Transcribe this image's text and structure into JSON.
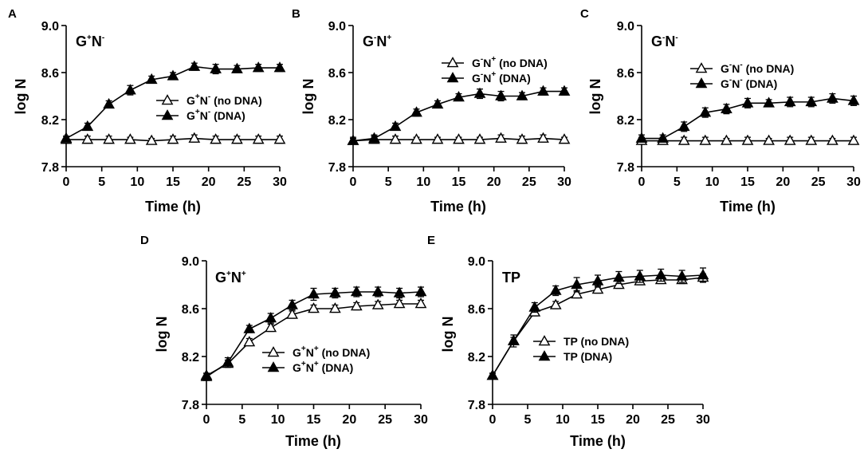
{
  "chart_data": [
    {
      "id": "A",
      "type": "line",
      "panel_letter": "A",
      "title": "G⁺N⁻",
      "title_main": "G",
      "title_sups": [
        "+",
        "N",
        "-"
      ],
      "xlabel": "Time (h)",
      "ylabel": "log N",
      "xlim": [
        0,
        30
      ],
      "ylim": [
        7.8,
        9.0
      ],
      "xticks": [
        0,
        5,
        10,
        15,
        20,
        25,
        30
      ],
      "yticks": [
        7.8,
        8.2,
        8.6,
        9.0
      ],
      "ytick_labels": [
        "7.8",
        "8.2",
        "8.6",
        "9.0"
      ],
      "legend_position": "center-right",
      "series": [
        {
          "name": "G⁺N⁻ (no DNA)",
          "label_base": "G",
          "label_sup1": "+",
          "label_mid": "N",
          "label_sup2": "-",
          "label_tail": " (no DNA)",
          "marker": "open-triangle",
          "x": [
            0,
            3,
            6,
            9,
            12,
            15,
            18,
            21,
            24,
            27,
            30
          ],
          "y": [
            8.03,
            8.03,
            8.03,
            8.03,
            8.02,
            8.03,
            8.04,
            8.03,
            8.03,
            8.03,
            8.03
          ],
          "err": [
            0.03,
            0.03,
            0.03,
            0.02,
            0.02,
            0.03,
            0.03,
            0.03,
            0.03,
            0.03,
            0.03
          ]
        },
        {
          "name": "G⁺N⁻ (DNA)",
          "label_base": "G",
          "label_sup1": "+",
          "label_mid": "N",
          "label_sup2": "-",
          "label_tail": " (DNA)",
          "marker": "filled-triangle",
          "x": [
            0,
            3,
            6,
            9,
            12,
            15,
            18,
            21,
            24,
            27,
            30
          ],
          "y": [
            8.04,
            8.14,
            8.33,
            8.45,
            8.54,
            8.57,
            8.65,
            8.63,
            8.63,
            8.64,
            8.64
          ],
          "err": [
            0.02,
            0.03,
            0.03,
            0.04,
            0.03,
            0.03,
            0.03,
            0.04,
            0.03,
            0.03,
            0.03
          ]
        }
      ]
    },
    {
      "id": "B",
      "type": "line",
      "panel_letter": "B",
      "title": "G⁻N⁺",
      "title_main": "G",
      "title_sups": [
        "-",
        "N",
        "+"
      ],
      "xlabel": "Time (h)",
      "ylabel": "log N",
      "xlim": [
        0,
        30
      ],
      "ylim": [
        7.8,
        9.0
      ],
      "xticks": [
        0,
        5,
        10,
        15,
        20,
        25,
        30
      ],
      "yticks": [
        7.8,
        8.2,
        8.6,
        9.0
      ],
      "ytick_labels": [
        "7.8",
        "8.2",
        "8.6",
        "9.0"
      ],
      "legend_position": "upper-right",
      "series": [
        {
          "name": "G⁻N⁺ (no DNA)",
          "label_base": "G",
          "label_sup1": "-",
          "label_mid": "N",
          "label_sup2": "+",
          "label_tail": " (no DNA)",
          "marker": "open-triangle",
          "x": [
            0,
            3,
            6,
            9,
            12,
            15,
            18,
            21,
            24,
            27,
            30
          ],
          "y": [
            8.02,
            8.03,
            8.03,
            8.03,
            8.03,
            8.03,
            8.03,
            8.04,
            8.03,
            8.04,
            8.03
          ],
          "err": [
            0.02,
            0.03,
            0.03,
            0.02,
            0.02,
            0.02,
            0.02,
            0.03,
            0.03,
            0.03,
            0.02
          ]
        },
        {
          "name": "G⁻N⁺ (DNA)",
          "label_base": "G",
          "label_sup1": "-",
          "label_mid": "N",
          "label_sup2": "+",
          "label_tail": " (DNA)",
          "marker": "filled-triangle",
          "x": [
            0,
            3,
            6,
            9,
            12,
            15,
            18,
            21,
            24,
            27,
            30
          ],
          "y": [
            8.02,
            8.04,
            8.14,
            8.26,
            8.33,
            8.39,
            8.42,
            8.4,
            8.4,
            8.44,
            8.44
          ],
          "err": [
            0.03,
            0.03,
            0.03,
            0.03,
            0.03,
            0.03,
            0.04,
            0.04,
            0.03,
            0.03,
            0.03
          ]
        }
      ]
    },
    {
      "id": "C",
      "type": "line",
      "panel_letter": "C",
      "title": "G⁻N⁻",
      "title_main": "G",
      "title_sups": [
        "-",
        "N",
        "-"
      ],
      "xlabel": "Time (h)",
      "ylabel": "log N",
      "xlim": [
        0,
        30
      ],
      "ylim": [
        7.8,
        9.0
      ],
      "xticks": [
        0,
        5,
        10,
        15,
        20,
        25,
        30
      ],
      "yticks": [
        7.8,
        8.2,
        8.6,
        9.0
      ],
      "ytick_labels": [
        "7.8",
        "8.2",
        "8.6",
        "9.0"
      ],
      "legend_position": "upper-right",
      "series": [
        {
          "name": "G⁻N⁻ (no DNA)",
          "label_base": "G",
          "label_sup1": "-",
          "label_mid": "N",
          "label_sup2": "-",
          "label_tail": " (no DNA)",
          "marker": "open-triangle",
          "x": [
            0,
            3,
            6,
            9,
            12,
            15,
            18,
            21,
            24,
            27,
            30
          ],
          "y": [
            8.02,
            8.02,
            8.02,
            8.02,
            8.02,
            8.02,
            8.02,
            8.02,
            8.02,
            8.02,
            8.02
          ],
          "err": [
            0.03,
            0.03,
            0.03,
            0.03,
            0.02,
            0.03,
            0.02,
            0.03,
            0.03,
            0.02,
            0.03
          ]
        },
        {
          "name": "G⁻N⁻ (DNA)",
          "label_base": "G",
          "label_sup1": "-",
          "label_mid": "N",
          "label_sup2": "-",
          "label_tail": " (DNA)",
          "marker": "filled-triangle",
          "x": [
            0,
            3,
            6,
            9,
            12,
            15,
            18,
            21,
            24,
            27,
            30
          ],
          "y": [
            8.04,
            8.04,
            8.14,
            8.26,
            8.29,
            8.34,
            8.34,
            8.35,
            8.35,
            8.38,
            8.36
          ],
          "err": [
            0.03,
            0.03,
            0.04,
            0.04,
            0.04,
            0.04,
            0.03,
            0.04,
            0.04,
            0.04,
            0.04
          ]
        }
      ]
    },
    {
      "id": "D",
      "type": "line",
      "panel_letter": "D",
      "title": "G⁺N⁺",
      "title_main": "G",
      "title_sups": [
        "+",
        "N",
        "+"
      ],
      "xlabel": "Time (h)",
      "ylabel": "log N",
      "xlim": [
        0,
        30
      ],
      "ylim": [
        7.8,
        9.0
      ],
      "xticks": [
        0,
        5,
        10,
        15,
        20,
        25,
        30
      ],
      "yticks": [
        7.8,
        8.2,
        8.6,
        9.0
      ],
      "ytick_labels": [
        "7.8",
        "8.2",
        "8.6",
        "9.0"
      ],
      "legend_position": "lower-center",
      "series": [
        {
          "name": "G⁺N⁺ (no DNA)",
          "label_base": "G",
          "label_sup1": "+",
          "label_mid": "N",
          "label_sup2": "+",
          "label_tail": " (no DNA)",
          "marker": "open-triangle",
          "x": [
            0,
            3,
            6,
            9,
            12,
            15,
            18,
            21,
            24,
            27,
            30
          ],
          "y": [
            8.04,
            8.14,
            8.32,
            8.44,
            8.55,
            8.6,
            8.6,
            8.62,
            8.63,
            8.64,
            8.64
          ],
          "err": [
            0.02,
            0.03,
            0.03,
            0.03,
            0.03,
            0.03,
            0.03,
            0.03,
            0.03,
            0.03,
            0.03
          ]
        },
        {
          "name": "G⁺N⁺ (DNA)",
          "label_base": "G",
          "label_sup1": "+",
          "label_mid": "N",
          "label_sup2": "+",
          "label_tail": " (DNA)",
          "marker": "filled-triangle",
          "x": [
            0,
            3,
            6,
            9,
            12,
            15,
            18,
            21,
            24,
            27,
            30
          ],
          "y": [
            8.03,
            8.15,
            8.43,
            8.52,
            8.63,
            8.72,
            8.73,
            8.74,
            8.74,
            8.73,
            8.74
          ],
          "err": [
            0.03,
            0.04,
            0.03,
            0.04,
            0.04,
            0.05,
            0.04,
            0.04,
            0.04,
            0.04,
            0.04
          ]
        }
      ]
    },
    {
      "id": "E",
      "type": "line",
      "panel_letter": "E",
      "title": "TP",
      "title_main": "TP",
      "title_sups": [],
      "xlabel": "Time (h)",
      "ylabel": "log N",
      "xlim": [
        0,
        30
      ],
      "ylim": [
        7.8,
        9.0
      ],
      "xticks": [
        0,
        5,
        10,
        15,
        20,
        25,
        30
      ],
      "yticks": [
        7.8,
        8.2,
        8.6,
        9.0
      ],
      "ytick_labels": [
        "7.8",
        "8.2",
        "8.6",
        "9.0"
      ],
      "legend_position": "lower-center",
      "series": [
        {
          "name": "TP (no DNA)",
          "label_base": "TP",
          "label_sup1": "",
          "label_mid": "",
          "label_sup2": "",
          "label_tail": " (no DNA)",
          "marker": "open-triangle",
          "x": [
            0,
            3,
            6,
            9,
            12,
            15,
            18,
            21,
            24,
            27,
            30
          ],
          "y": [
            8.04,
            8.33,
            8.57,
            8.63,
            8.72,
            8.76,
            8.8,
            8.83,
            8.84,
            8.84,
            8.86
          ],
          "err": [
            0.02,
            0.03,
            0.03,
            0.03,
            0.03,
            0.03,
            0.03,
            0.03,
            0.03,
            0.03,
            0.03
          ]
        },
        {
          "name": "TP (DNA)",
          "label_base": "TP",
          "label_sup1": "",
          "label_mid": "",
          "label_sup2": "",
          "label_tail": " (DNA)",
          "marker": "filled-triangle",
          "x": [
            0,
            3,
            6,
            9,
            12,
            15,
            18,
            21,
            24,
            27,
            30
          ],
          "y": [
            8.04,
            8.33,
            8.61,
            8.75,
            8.8,
            8.83,
            8.86,
            8.87,
            8.88,
            8.87,
            8.88
          ],
          "err": [
            0.02,
            0.05,
            0.04,
            0.04,
            0.06,
            0.05,
            0.05,
            0.05,
            0.05,
            0.05,
            0.06
          ]
        }
      ]
    }
  ]
}
